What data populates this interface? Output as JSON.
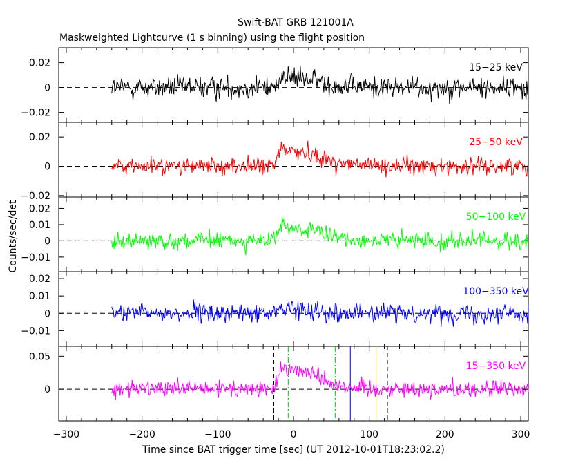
{
  "title": "Swift-BAT GRB 121001A",
  "subtitle": "Maskweighted Lightcurve (1 s binning) using the flight position",
  "xlabel": "Time since BAT trigger time [sec] (UT 2012-10-01T18:23:02.2)",
  "ylabel": "Counts/sec/det",
  "chart_data": {
    "type": "line",
    "x_range": [
      -310,
      310
    ],
    "x_ticks": [
      "−300",
      "−200",
      "−100",
      "0",
      "100",
      "200",
      "300"
    ],
    "x_tick_values": [
      -300,
      -200,
      -100,
      0,
      100,
      200,
      300
    ],
    "data_x_start": -240,
    "data_x_end": 310,
    "binning_s": 1,
    "grid": false,
    "zero_reference_line": "dashed",
    "panels": [
      {
        "band": "15−25 keV",
        "color": "#000000",
        "ylim": [
          -0.028,
          0.032
        ],
        "y_tick_labels": [
          "0.02",
          "0",
          "−0.02"
        ],
        "y_tick_values": [
          0.02,
          0,
          -0.02
        ],
        "approx_noise": 0.0075,
        "pulse_peak": 0.009
      },
      {
        "band": "25−50 keV",
        "color": "#ff0000",
        "ylim": [
          -0.021,
          0.03
        ],
        "y_tick_labels": [
          "0.02",
          "0",
          "−0.02"
        ],
        "y_tick_values": [
          0.02,
          0,
          -0.02
        ],
        "approx_noise": 0.005,
        "pulse_peak": 0.012
      },
      {
        "band": "50−100 keV",
        "color": "#00ff00",
        "ylim": [
          -0.019,
          0.027
        ],
        "y_tick_labels": [
          "0.02",
          "0.01",
          "0",
          "−0.01"
        ],
        "y_tick_values": [
          0.02,
          0.01,
          0,
          -0.01
        ],
        "approx_noise": 0.0045,
        "pulse_peak": 0.009
      },
      {
        "band": "100−350 keV",
        "color": "#0000ff",
        "ylim": [
          -0.019,
          0.024
        ],
        "y_tick_labels": [
          "0.02",
          "0.01",
          "0",
          "−0.01"
        ],
        "y_tick_values": [
          0.02,
          0.01,
          0,
          -0.01
        ],
        "approx_noise": 0.0045,
        "pulse_peak": 0.003
      },
      {
        "band": "15−350 keV",
        "color": "#ff00ff",
        "ylim": [
          -0.048,
          0.065
        ],
        "y_tick_labels": [
          "0.05",
          "0"
        ],
        "y_tick_values": [
          0.05,
          0
        ],
        "approx_noise": 0.011,
        "pulse_peak": 0.035
      }
    ],
    "markers": [
      {
        "x": -26,
        "color": "#000000",
        "style": "dashed"
      },
      {
        "x": -7,
        "color": "#00c000",
        "style": "dashdot"
      },
      {
        "x": 55,
        "color": "#00c000",
        "style": "dashdot"
      },
      {
        "x": 75,
        "color": "#0000ff",
        "style": "solid"
      },
      {
        "x": 109,
        "color": "#c07000",
        "style": "solid"
      },
      {
        "x": 124,
        "color": "#000000",
        "style": "dashed"
      }
    ]
  }
}
